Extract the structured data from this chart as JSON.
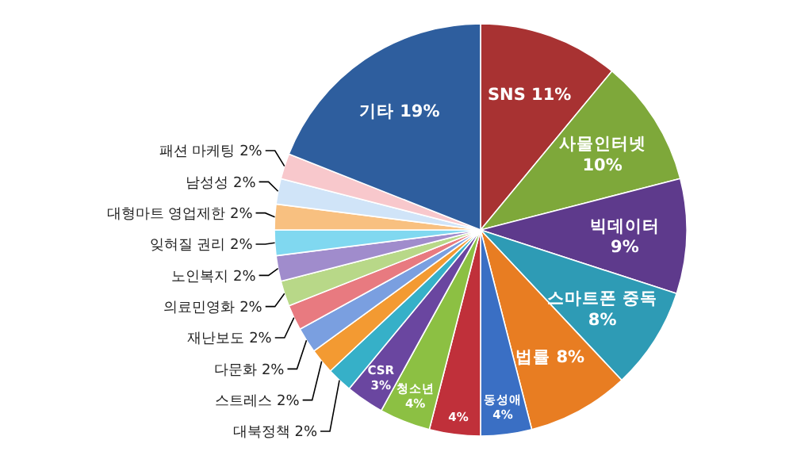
{
  "chart_data": {
    "type": "pie",
    "categories": [
      "SNS",
      "사물인터넷",
      "빅데이터",
      "스마트폰 중독",
      "법률",
      "동성애",
      null,
      "청소년",
      "CSR",
      "대북정책",
      "스트레스",
      "다문화",
      "재난보도",
      "의료민영화",
      "노인복지",
      "잊혀질 권리",
      "대형마트 영업제한",
      "남성성",
      "패션 마케팅",
      "기타"
    ],
    "values": [
      11,
      10,
      9,
      8,
      8,
      4,
      4,
      4,
      3,
      2,
      2,
      2,
      2,
      2,
      2,
      2,
      2,
      2,
      2,
      19
    ],
    "colors": [
      "#a83232",
      "#7ea83a",
      "#5e3a8c",
      "#2e9bb5",
      "#e87d22",
      "#3a6fc4",
      "#c0303a",
      "#8cc043",
      "#6a46a0",
      "#36b0c8",
      "#f39a32",
      "#7a9fe0",
      "#e87a80",
      "#b8d888",
      "#a08ccc",
      "#80d8f0",
      "#f8c080",
      "#d0e4f8",
      "#f8c8cc",
      "#2e5e9e"
    ],
    "value_labels": [
      "11%",
      "10%",
      "9%",
      "8%",
      "8%",
      "4%",
      "4%",
      "4%",
      "3%",
      "2%",
      "2%",
      "2%",
      "2%",
      "2%",
      "2%",
      "2%",
      "2%",
      "2%",
      "2%",
      "19%"
    ]
  }
}
